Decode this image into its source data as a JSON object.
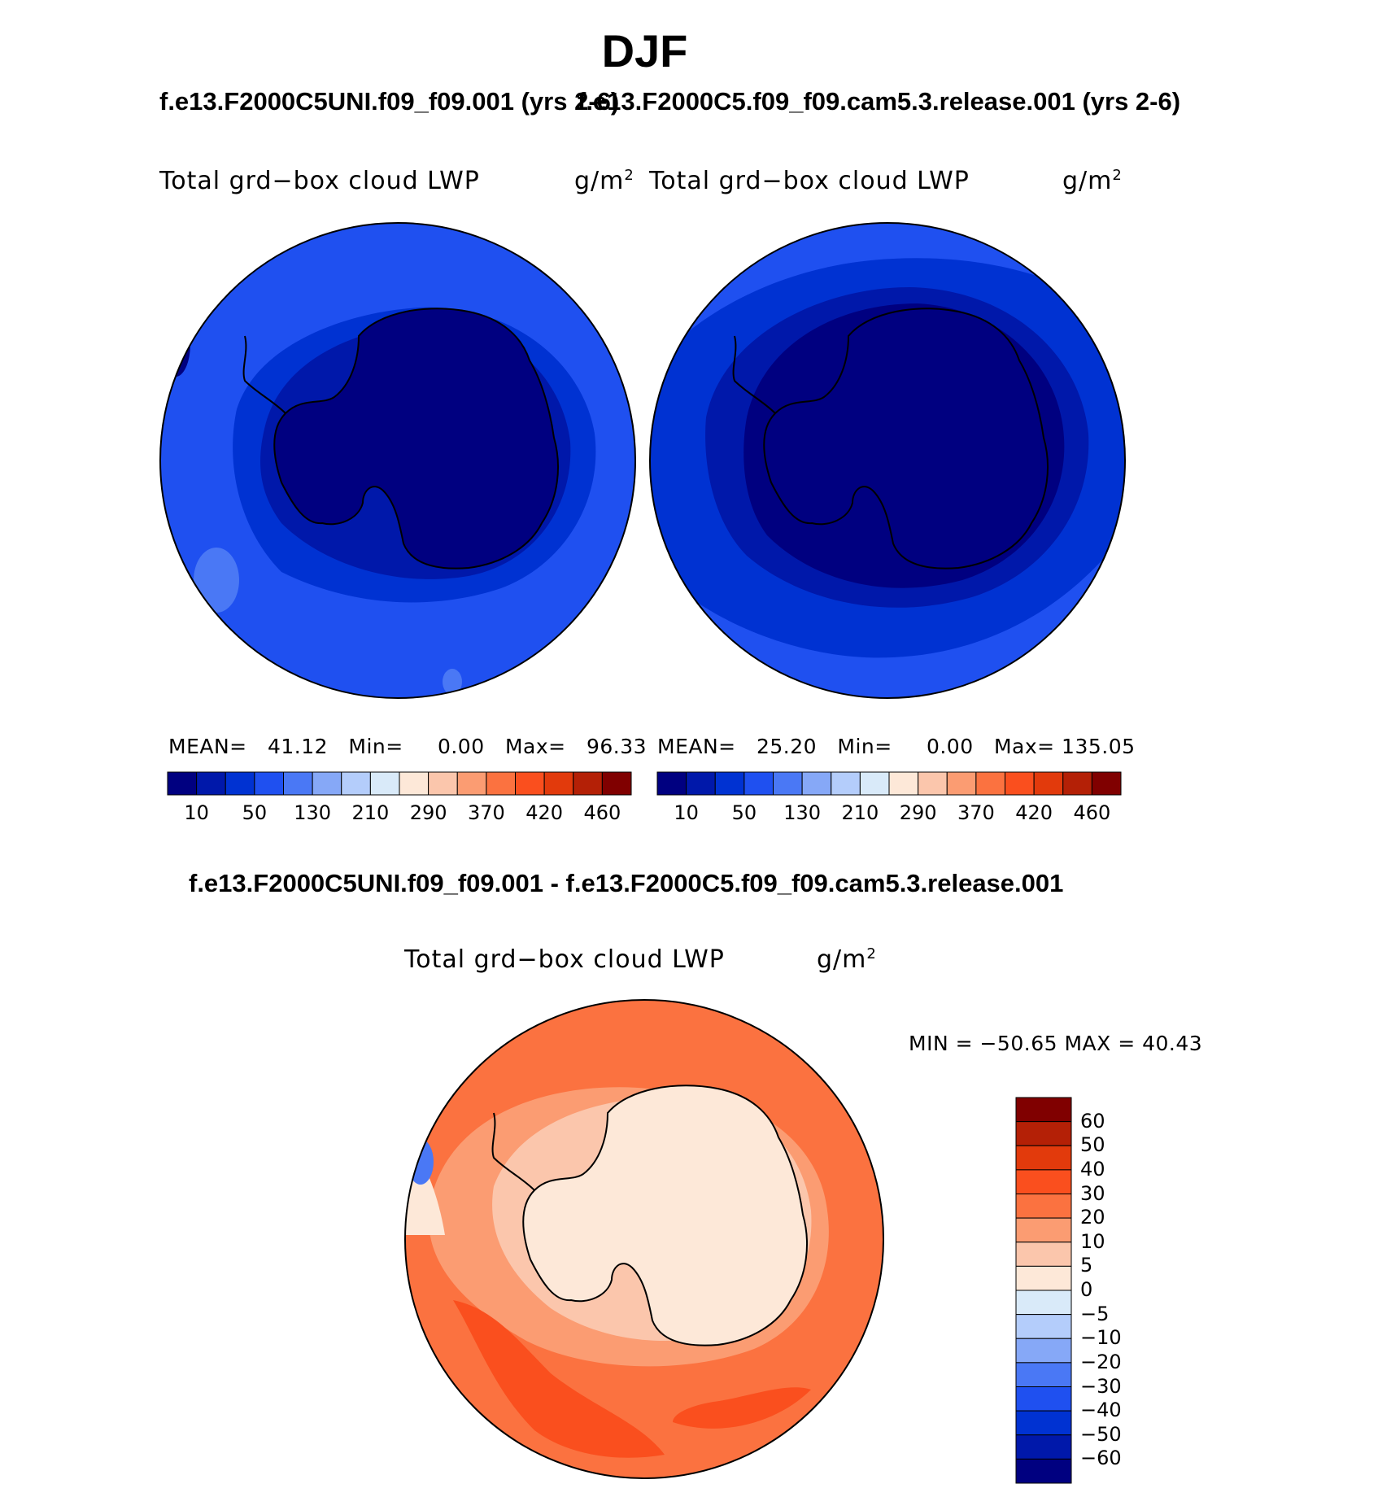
{
  "figure": {
    "title": "DJF",
    "case_a": "f.e13.F2000C5UNI.f09_f09.001 (yrs 2-6)",
    "case_b": "f.e13.F2000C5.f09_f09.cam5.3.release.001 (yrs 2-6)",
    "diff_title": "f.e13.F2000C5UNI.f09_f09.001 - f.e13.F2000C5.f09_f09.cam5.3.release.001"
  },
  "panels": [
    {
      "variable": "Total grd−box cloud LWP",
      "units_base": "g/m",
      "units_exp": "2",
      "mean_label": "MEAN=",
      "mean": "41.12",
      "min_label": "Min=",
      "min": "0.00",
      "max_label": "Max=",
      "max": "96.33"
    },
    {
      "variable": "Total grd−box cloud LWP",
      "units_base": "g/m",
      "units_exp": "2",
      "mean_label": "MEAN=",
      "mean": "25.20",
      "min_label": "Min=",
      "min": "0.00",
      "max_label": "Max=",
      "max": "135.05"
    }
  ],
  "diff_panel": {
    "variable": "Total grd−box cloud LWP",
    "units_base": "g/m",
    "units_exp": "2",
    "minmax": "MIN = −50.65 MAX =   40.43"
  },
  "colorbar_abs": {
    "colors": [
      "#000080",
      "#0018aa",
      "#0032d2",
      "#1f50f0",
      "#4a78f5",
      "#86a8f7",
      "#b4cdfb",
      "#d9eaf9",
      "#fde8d8",
      "#fbc6ac",
      "#fb9c72",
      "#fb7240",
      "#fa4f1e",
      "#e23a0c",
      "#b42006",
      "#800000"
    ],
    "labels": [
      "10",
      "50",
      "130",
      "210",
      "290",
      "370",
      "420",
      "460"
    ]
  },
  "colorbar_diff": {
    "colors": [
      "#800000",
      "#b42006",
      "#e23a0c",
      "#fa4f1e",
      "#fb7240",
      "#fb9c72",
      "#fbc6ac",
      "#fde8d8",
      "#d9eaf9",
      "#b4cdfb",
      "#86a8f7",
      "#4a78f5",
      "#1f50f0",
      "#0032d2",
      "#0018aa",
      "#000080"
    ],
    "labels": [
      "60",
      "50",
      "40",
      "30",
      "20",
      "10",
      "5",
      "0",
      "−5",
      "−10",
      "−20",
      "−30",
      "−40",
      "−50",
      "−60"
    ]
  },
  "fields": {
    "panel1_colors": [
      "#1f50f0",
      "#0032d2",
      "#0018aa",
      "#000080",
      "#4a78f5"
    ],
    "panel2_colors": [
      "#0032d2",
      "#0018aa",
      "#000080",
      "#1f50f0"
    ],
    "diff_colors": [
      "#fb7240",
      "#fb9c72",
      "#fa4f1e",
      "#fde8d8",
      "#fbc6ac",
      "#4a78f5"
    ]
  }
}
